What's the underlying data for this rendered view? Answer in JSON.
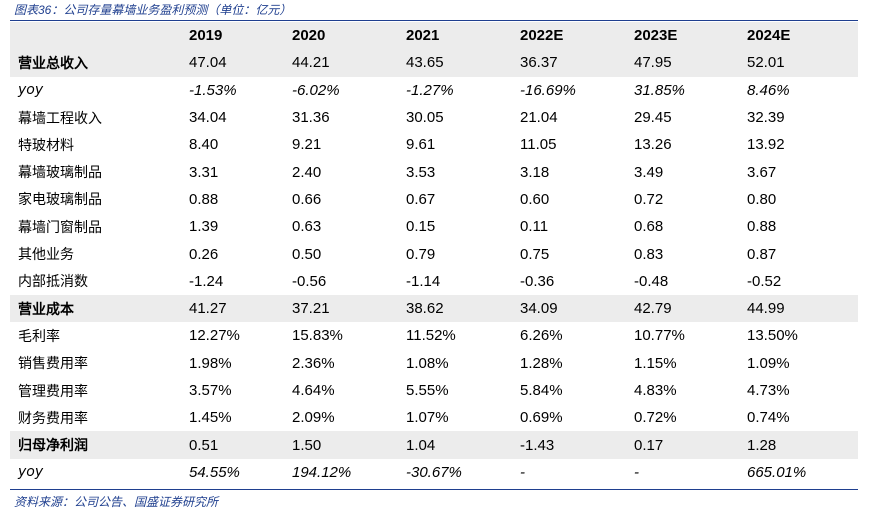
{
  "caption": "图表36：公司存量幕墙业务盈利预测（单位：亿元）",
  "source": "资料来源：公司公告、国盛证券研究所",
  "columns": [
    "2019",
    "2020",
    "2021",
    "2022E",
    "2023E",
    "2024E"
  ],
  "rows": [
    {
      "label": "营业总收入",
      "values": [
        "47.04",
        "44.21",
        "43.65",
        "36.37",
        "47.95",
        "52.01"
      ]
    },
    {
      "label": "yoy",
      "values": [
        "-1.53%",
        "-6.02%",
        "-1.27%",
        "-16.69%",
        "31.85%",
        "8.46%"
      ]
    },
    {
      "label": "幕墙工程收入",
      "values": [
        "34.04",
        "31.36",
        "30.05",
        "21.04",
        "29.45",
        "32.39"
      ]
    },
    {
      "label": "特玻材料",
      "values": [
        "8.40",
        "9.21",
        "9.61",
        "11.05",
        "13.26",
        "13.92"
      ]
    },
    {
      "label": "幕墙玻璃制品",
      "values": [
        "3.31",
        "2.40",
        "3.53",
        "3.18",
        "3.49",
        "3.67"
      ]
    },
    {
      "label": "家电玻璃制品",
      "values": [
        "0.88",
        "0.66",
        "0.67",
        "0.60",
        "0.72",
        "0.80"
      ]
    },
    {
      "label": "幕墙门窗制品",
      "values": [
        "1.39",
        "0.63",
        "0.15",
        "0.11",
        "0.68",
        "0.88"
      ]
    },
    {
      "label": "其他业务",
      "values": [
        "0.26",
        "0.50",
        "0.79",
        "0.75",
        "0.83",
        "0.87"
      ]
    },
    {
      "label": "内部抵消数",
      "values": [
        "-1.24",
        "-0.56",
        "-1.14",
        "-0.36",
        "-0.48",
        "-0.52"
      ]
    },
    {
      "label": "营业成本",
      "values": [
        "41.27",
        "37.21",
        "38.62",
        "34.09",
        "42.79",
        "44.99"
      ]
    },
    {
      "label": "毛利率",
      "values": [
        "12.27%",
        "15.83%",
        "11.52%",
        "6.26%",
        "10.77%",
        "13.50%"
      ]
    },
    {
      "label": "销售费用率",
      "values": [
        "1.98%",
        "2.36%",
        "1.08%",
        "1.28%",
        "1.15%",
        "1.09%"
      ]
    },
    {
      "label": "管理费用率",
      "values": [
        "3.57%",
        "4.64%",
        "5.55%",
        "5.84%",
        "4.83%",
        "4.73%"
      ]
    },
    {
      "label": "财务费用率",
      "values": [
        "1.45%",
        "2.09%",
        "1.07%",
        "0.69%",
        "0.72%",
        "0.74%"
      ]
    },
    {
      "label": "归母净利润",
      "values": [
        "0.51",
        "1.50",
        "1.04",
        "-1.43",
        "0.17",
        "1.28"
      ]
    },
    {
      "label": "yoy",
      "values": [
        "54.55%",
        "194.12%",
        "-30.67%",
        "-",
        "-",
        "665.01%"
      ]
    }
  ]
}
